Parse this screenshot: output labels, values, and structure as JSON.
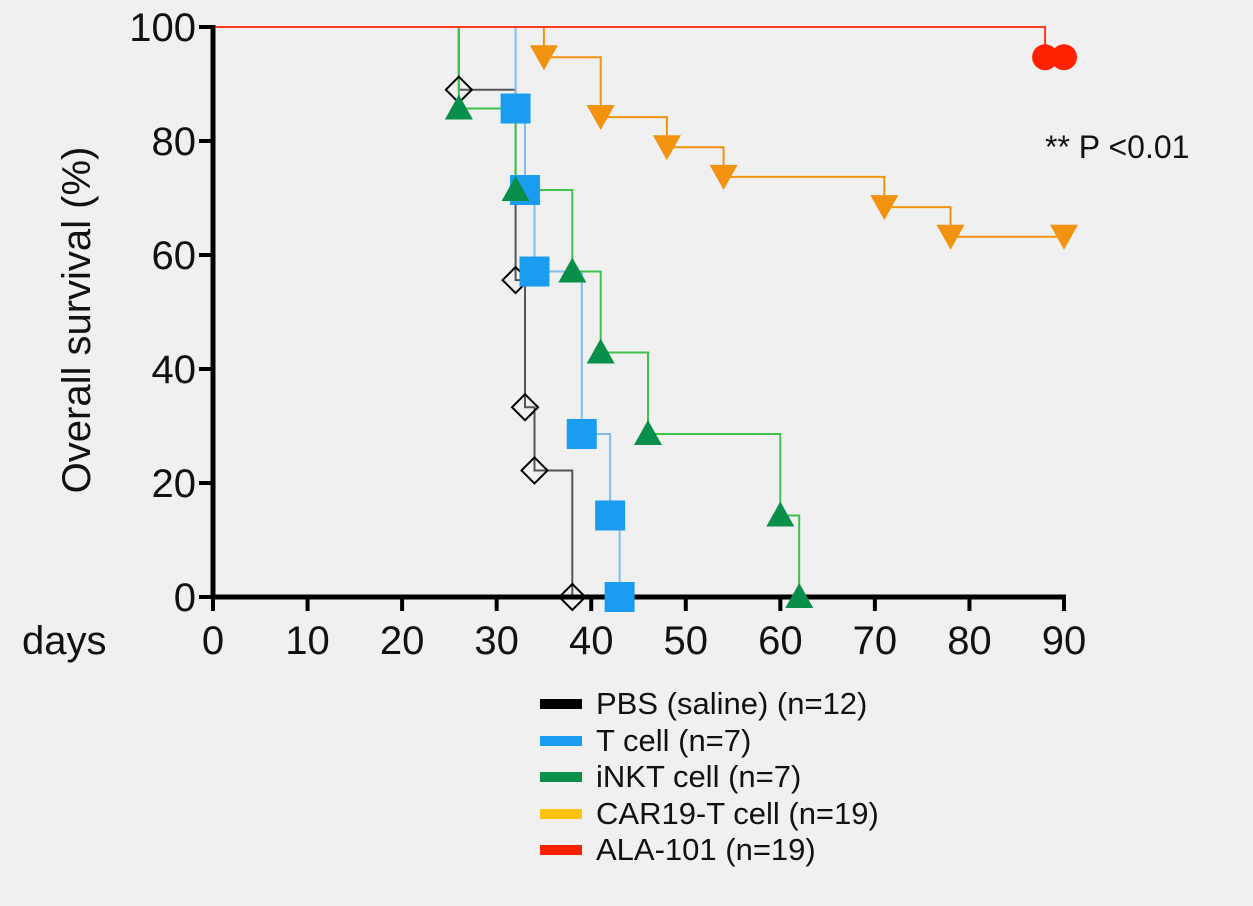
{
  "chart_data": {
    "type": "line",
    "subtype": "kaplan-meier-step",
    "title": "",
    "xlabel": "days",
    "ylabel": "Overall survival (%)",
    "xlim": [
      0,
      90
    ],
    "ylim": [
      0,
      100
    ],
    "x_ticks": [
      0,
      10,
      20,
      30,
      40,
      50,
      60,
      70,
      80,
      90
    ],
    "y_ticks": [
      0,
      20,
      40,
      60,
      80,
      100
    ],
    "grid": false,
    "legend_position": "bottom-right",
    "annotation": "** P <0.01",
    "series": [
      {
        "name": "PBS (saline) (n=12)",
        "color": "#000000",
        "line_color": "#555555",
        "marker": "diamond-open",
        "steps": [
          [
            0,
            100
          ],
          [
            26,
            100
          ],
          [
            26,
            89
          ],
          [
            32,
            89
          ],
          [
            32,
            55.6
          ],
          [
            33,
            55.6
          ],
          [
            33,
            33.3
          ],
          [
            34,
            33.3
          ],
          [
            34,
            22.2
          ],
          [
            38,
            22.2
          ],
          [
            38,
            0
          ]
        ],
        "markers": [
          [
            26,
            89
          ],
          [
            32,
            55.6
          ],
          [
            33,
            33.3
          ],
          [
            34,
            22.2
          ],
          [
            38,
            0
          ]
        ]
      },
      {
        "name": "T cell (n=7)",
        "color": "#1a9cf0",
        "line_color": "#7fbff0",
        "marker": "square",
        "steps": [
          [
            0,
            100
          ],
          [
            32,
            100
          ],
          [
            32,
            85.7
          ],
          [
            33,
            85.7
          ],
          [
            33,
            71.4
          ],
          [
            34,
            71.4
          ],
          [
            34,
            57.1
          ],
          [
            39,
            57.1
          ],
          [
            39,
            28.6
          ],
          [
            42,
            28.6
          ],
          [
            42,
            14.3
          ],
          [
            43,
            14.3
          ],
          [
            43,
            0
          ]
        ],
        "markers": [
          [
            32,
            85.7
          ],
          [
            33,
            71.4
          ],
          [
            34,
            57.1
          ],
          [
            39,
            28.6
          ],
          [
            42,
            14.3
          ],
          [
            43,
            0
          ]
        ]
      },
      {
        "name": "iNKT cell (n=7)",
        "color": "#0a8f4a",
        "line_color": "#3ec24a",
        "marker": "triangle-up",
        "steps": [
          [
            0,
            100
          ],
          [
            26,
            100
          ],
          [
            26,
            85.7
          ],
          [
            32,
            85.7
          ],
          [
            32,
            71.4
          ],
          [
            38,
            71.4
          ],
          [
            38,
            57.1
          ],
          [
            41,
            57.1
          ],
          [
            41,
            42.9
          ],
          [
            46,
            42.9
          ],
          [
            46,
            28.6
          ],
          [
            60,
            28.6
          ],
          [
            60,
            14.3
          ],
          [
            62,
            14.3
          ],
          [
            62,
            0
          ]
        ],
        "markers": [
          [
            26,
            85.7
          ],
          [
            32,
            71.4
          ],
          [
            38,
            57.1
          ],
          [
            41,
            42.9
          ],
          [
            46,
            28.6
          ],
          [
            60,
            14.3
          ],
          [
            62,
            0
          ]
        ]
      },
      {
        "name": "CAR19-T cell (n=19)",
        "color": "#f2920f",
        "legend_color": "#ffc20e",
        "line_color": "#f2920f",
        "marker": "triangle-down",
        "steps": [
          [
            0,
            100
          ],
          [
            35,
            100
          ],
          [
            35,
            94.7
          ],
          [
            41,
            94.7
          ],
          [
            41,
            84.2
          ],
          [
            48,
            84.2
          ],
          [
            48,
            78.9
          ],
          [
            54,
            78.9
          ],
          [
            54,
            73.7
          ],
          [
            71,
            73.7
          ],
          [
            71,
            68.4
          ],
          [
            78,
            68.4
          ],
          [
            78,
            63.2
          ],
          [
            90,
            63.2
          ]
        ],
        "markers": [
          [
            35,
            94.7
          ],
          [
            41,
            84.2
          ],
          [
            48,
            78.9
          ],
          [
            54,
            73.7
          ],
          [
            71,
            68.4
          ],
          [
            78,
            63.2
          ],
          [
            90,
            63.2
          ]
        ]
      },
      {
        "name": "ALA-101 (n=19)",
        "color": "#ff2200",
        "line_color": "#ff3b1f",
        "marker": "circle",
        "steps": [
          [
            0,
            100
          ],
          [
            88,
            100
          ],
          [
            88,
            94.7
          ],
          [
            90,
            94.7
          ]
        ],
        "markers": [
          [
            88,
            94.7
          ],
          [
            90,
            94.7
          ]
        ]
      }
    ]
  }
}
